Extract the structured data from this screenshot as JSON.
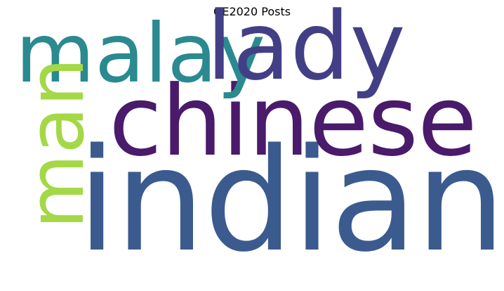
{
  "figure": {
    "title": "GE2020 Posts"
  },
  "words": [
    {
      "id": "indian",
      "text": "indian",
      "color": "#3b5b8f"
    },
    {
      "id": "chinese",
      "text": "chinese",
      "color": "#4a1a6b"
    },
    {
      "id": "malay",
      "text": "malay",
      "color": "#2a8a90"
    },
    {
      "id": "lady",
      "text": "lady",
      "color": "#433f86"
    },
    {
      "id": "man",
      "text": "man",
      "color": "#a4d846"
    }
  ]
}
